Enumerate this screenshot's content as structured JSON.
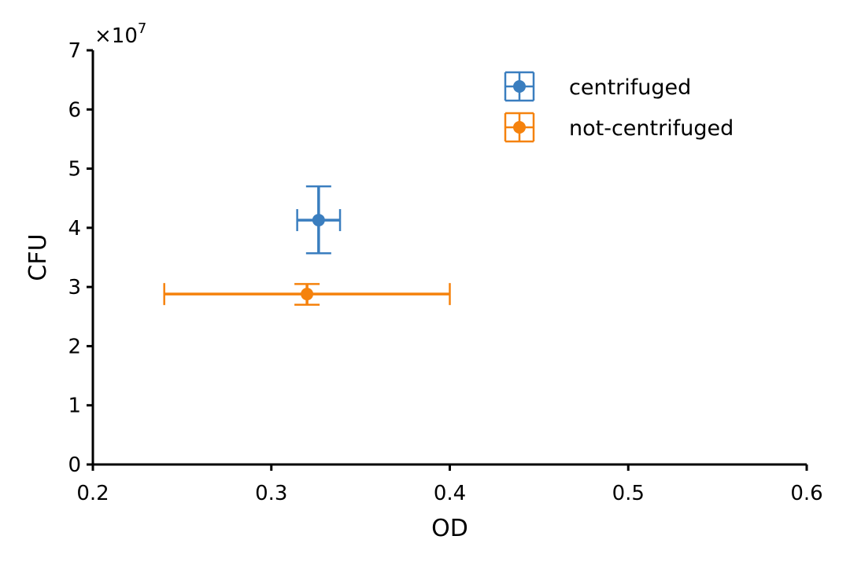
{
  "chart_data": {
    "type": "scatter",
    "title": "",
    "xlabel": "OD",
    "ylabel": "CFU",
    "xlim": [
      0.2,
      0.6
    ],
    "ylim": [
      0,
      70000000
    ],
    "y_multiplier_label": "×10",
    "y_multiplier_exponent": "7",
    "x_ticks": [
      {
        "value": 0.2,
        "label": "0.2"
      },
      {
        "value": 0.3,
        "label": "0.3"
      },
      {
        "value": 0.4,
        "label": "0.4"
      },
      {
        "value": 0.5,
        "label": "0.5"
      },
      {
        "value": 0.6,
        "label": "0.6"
      }
    ],
    "y_ticks": [
      {
        "value": 0,
        "label": "0"
      },
      {
        "value": 10000000,
        "label": "1"
      },
      {
        "value": 20000000,
        "label": "2"
      },
      {
        "value": 30000000,
        "label": "3"
      },
      {
        "value": 40000000,
        "label": "4"
      },
      {
        "value": 50000000,
        "label": "5"
      },
      {
        "value": 60000000,
        "label": "6"
      },
      {
        "value": 70000000,
        "label": "7"
      }
    ],
    "grid": false,
    "legend_position": "top-right",
    "series": [
      {
        "name": "centrifuged",
        "color": "#3a7ebf",
        "points": [
          {
            "x": 0.3265,
            "y": 41300000,
            "xerr_low": 0.3145,
            "xerr_high": 0.3385,
            "yerr_low": 35700000,
            "yerr_high": 47000000
          }
        ]
      },
      {
        "name": "not-centrifuged",
        "color": "#f5820d",
        "points": [
          {
            "x": 0.32,
            "y": 28800000,
            "xerr_low": 0.24,
            "xerr_high": 0.4,
            "yerr_low": 27000000,
            "yerr_high": 30500000
          }
        ]
      }
    ]
  }
}
